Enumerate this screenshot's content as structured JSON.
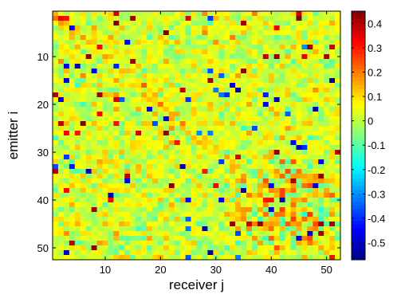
{
  "chart_data": {
    "type": "heatmap",
    "title": "",
    "xlabel": "receiver j",
    "ylabel": "emitter i",
    "rows": 52,
    "cols": 52,
    "xlim": [
      0.5,
      52.5
    ],
    "ylim": [
      0.5,
      52.5
    ],
    "y_direction": "reversed",
    "xticks": [
      10,
      20,
      30,
      40,
      50
    ],
    "yticks": [
      10,
      20,
      30,
      40,
      50
    ],
    "colormap": "jet",
    "clim": [
      -0.57,
      0.45
    ],
    "colorbar_ticks": [
      0.4,
      0.3,
      0.2,
      0.1,
      0,
      -0.1,
      -0.2,
      -0.3,
      -0.4,
      -0.5
    ],
    "colorbar_tick_labels": [
      "0.4",
      "0.3",
      "0.2",
      "0.1",
      "0",
      "-0.1",
      "-0.2",
      "-0.3",
      "-0.4",
      "-0.5"
    ],
    "grid": false,
    "values_note": ""
  }
}
